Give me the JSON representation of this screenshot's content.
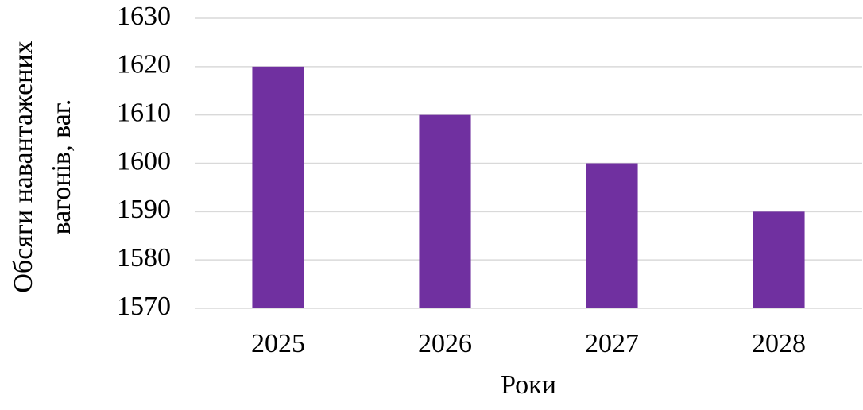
{
  "chart_data": {
    "type": "bar",
    "xlabel": "Роки",
    "ylabel": [
      "Обсяги навантажених",
      "вагонів, ваг."
    ],
    "categories": [
      "2025",
      "2026",
      "2027",
      "2028"
    ],
    "values": [
      1620,
      1610,
      1600,
      1590
    ],
    "color": "#7030a0",
    "ylim": [
      1570,
      1630
    ],
    "yticks": [
      1570,
      1580,
      1590,
      1600,
      1610,
      1620,
      1630
    ],
    "grid": true
  }
}
